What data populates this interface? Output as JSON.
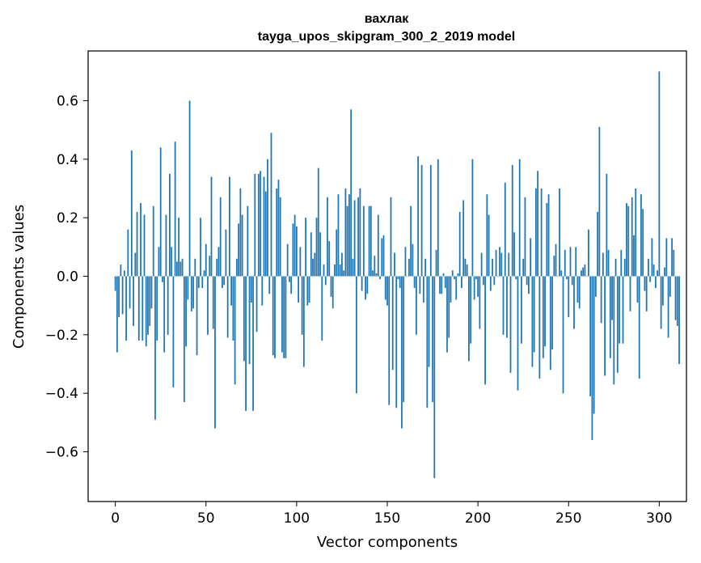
{
  "chart_data": {
    "type": "bar",
    "title": "вахлак",
    "subtitle": "tayga_upos_skipgram_300_2_2019 model",
    "xlabel": "Vector components",
    "ylabel": "Components values",
    "xlim": [
      -15,
      315
    ],
    "ylim": [
      -0.77,
      0.77
    ],
    "x_ticks": [
      0,
      50,
      100,
      150,
      200,
      250,
      300
    ],
    "x_tick_labels": [
      "0",
      "50",
      "100",
      "150",
      "200",
      "250",
      "300"
    ],
    "y_ticks": [
      -0.6,
      -0.4,
      -0.2,
      0.0,
      0.2,
      0.4,
      0.6
    ],
    "y_tick_labels": [
      "−0.6",
      "−0.4",
      "−0.2",
      "0.0",
      "0.2",
      "0.4",
      "0.6"
    ],
    "grid": false,
    "bar_color": "#1f77b4",
    "values": [
      -0.05,
      -0.26,
      -0.14,
      0.04,
      -0.13,
      0.02,
      -0.22,
      0.16,
      -0.11,
      0.43,
      -0.17,
      0.08,
      0.22,
      -0.22,
      0.25,
      -0.22,
      0.21,
      -0.24,
      -0.2,
      -0.17,
      -0.11,
      0.24,
      -0.49,
      -0.22,
      0.1,
      0.44,
      -0.02,
      -0.26,
      0.21,
      -0.2,
      0.35,
      0.1,
      -0.38,
      0.46,
      0.05,
      0.2,
      0.05,
      0.06,
      -0.43,
      -0.24,
      -0.08,
      0.6,
      -0.12,
      -0.11,
      0.06,
      -0.27,
      -0.04,
      0.2,
      -0.04,
      0.02,
      0.11,
      -0.2,
      0.07,
      0.34,
      -0.18,
      -0.52,
      0.06,
      0.1,
      0.27,
      -0.04,
      -0.03,
      0.16,
      -0.21,
      0.34,
      -0.1,
      -0.22,
      -0.37,
      0.06,
      0.18,
      0.3,
      0.21,
      -0.29,
      -0.46,
      0.24,
      -0.3,
      -0.09,
      -0.46,
      0.35,
      -0.19,
      0.35,
      0.36,
      -0.1,
      0.34,
      0.29,
      0.4,
      -0.06,
      0.49,
      -0.27,
      -0.28,
      0.3,
      0.33,
      0.27,
      -0.26,
      -0.28,
      -0.28,
      0.11,
      -0.02,
      -0.06,
      0.18,
      0.21,
      0.17,
      -0.09,
      0.1,
      -0.2,
      -0.31,
      0.2,
      -0.1,
      -0.09,
      0.15,
      0.06,
      0.08,
      0.2,
      0.37,
      0.15,
      -0.22,
      0.04,
      -0.03,
      0.27,
      0.12,
      -0.07,
      -0.11,
      0.04,
      0.16,
      0.28,
      0.04,
      0.08,
      0.02,
      0.3,
      0.24,
      0.28,
      0.57,
      0.06,
      0.26,
      -0.4,
      0.27,
      0.3,
      -0.05,
      0.24,
      -0.08,
      -0.06,
      0.24,
      0.24,
      0.02,
      0.07,
      0.01,
      0.21,
      -0.01,
      0.13,
      0.14,
      -0.08,
      -0.1,
      -0.44,
      0.27,
      -0.32,
      0.08,
      -0.45,
      -0.01,
      -0.04,
      -0.52,
      -0.43,
      0.1,
      0.0,
      0.06,
      0.24,
      0.11,
      -0.04,
      -0.2,
      0.41,
      -0.06,
      0.38,
      -0.09,
      0.06,
      -0.45,
      -0.31,
      0.38,
      -0.43,
      -0.69,
      0.09,
      0.4,
      -0.06,
      -0.06,
      0.01,
      -0.04,
      -0.26,
      -0.21,
      -0.09,
      0.02,
      -0.01,
      -0.08,
      0.01,
      0.22,
      -0.04,
      0.26,
      0.06,
      0.04,
      -0.29,
      -0.23,
      0.4,
      -0.08,
      -0.01,
      -0.07,
      -0.18,
      0.08,
      -0.03,
      -0.37,
      0.28,
      0.21,
      -0.05,
      0.06,
      -0.03,
      0.09,
      0.0,
      0.1,
      0.08,
      -0.2,
      0.32,
      -0.21,
      0.08,
      -0.33,
      0.38,
      0.15,
      -0.01,
      -0.39,
      0.4,
      -0.23,
      0.06,
      0.27,
      -0.03,
      -0.06,
      0.13,
      -0.31,
      -0.26,
      0.3,
      0.36,
      -0.35,
      0.3,
      -0.28,
      -0.24,
      0.25,
      0.28,
      -0.32,
      -0.25,
      0.07,
      0.11,
      0.0,
      0.3,
      0.02,
      -0.4,
      0.09,
      -0.01,
      -0.14,
      0.1,
      -0.03,
      -0.18,
      0.1,
      -0.09,
      -0.11,
      0.02,
      0.03,
      0.04,
      0.0,
      0.16,
      -0.41,
      -0.56,
      -0.47,
      -0.07,
      0.22,
      0.51,
      -0.16,
      0.08,
      -0.34,
      0.35,
      0.09,
      -0.28,
      -0.15,
      -0.37,
      0.06,
      -0.33,
      -0.23,
      0.09,
      -0.23,
      0.06,
      0.25,
      0.24,
      -0.12,
      0.27,
      0.14,
      0.3,
      -0.09,
      -0.35,
      0.28,
      0.23,
      -0.05,
      -0.12,
      0.06,
      -0.02,
      0.13,
      0.04,
      -0.04,
      0.02,
      0.7,
      -0.18,
      -0.1,
      0.03,
      0.13,
      -0.21,
      -0.07,
      0.13,
      0.09,
      -0.15,
      -0.17,
      -0.3
    ]
  }
}
